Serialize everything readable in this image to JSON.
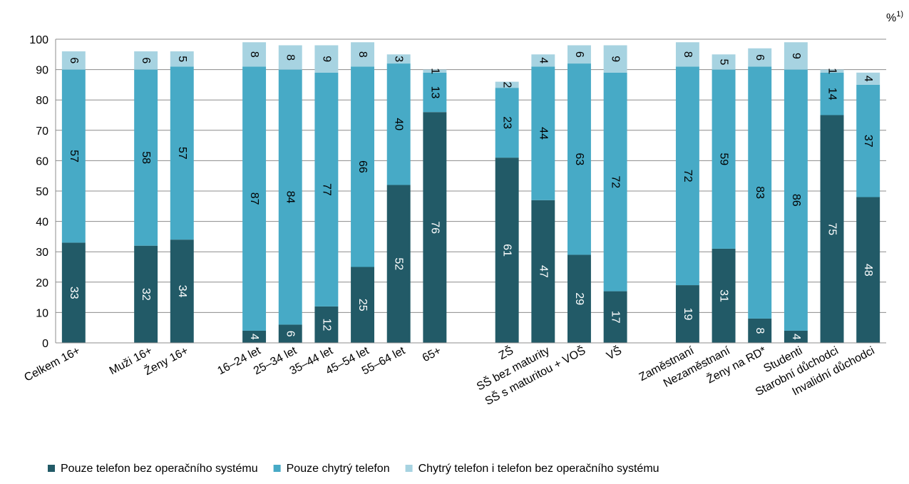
{
  "chart_data": {
    "type": "bar",
    "stacked": true,
    "unit": "%",
    "unit_note": "1)",
    "ylim": [
      0,
      100
    ],
    "yticks": [
      0,
      10,
      20,
      30,
      40,
      50,
      60,
      70,
      80,
      90,
      100
    ],
    "grid": true,
    "legend_position": "bottom",
    "groups": [
      3,
      3,
      3,
      3,
      3,
      3,
      3,
      3,
      3,
      3,
      3,
      3,
      3,
      3
    ],
    "categories": [
      "Celkem 16+",
      "Muži 16+",
      "Ženy 16+",
      "16–24 let",
      "25–34 let",
      "35–44 let",
      "45–54 let",
      "55–64 let",
      "65+",
      "ZŠ",
      "SŠ bez maturity",
      "SŠ s maturitou + VOŠ",
      "VŠ",
      "Zaměstnaní",
      "Nezaměstnaní",
      "Ženy na RD*",
      "Studenti",
      "Starobní důchodci",
      "Invalidní důchodci"
    ],
    "category_groups": [
      1,
      2,
      6,
      4,
      6
    ],
    "series": [
      {
        "name": "Pouze telefon bez operačního systému",
        "color": "#225a67",
        "label_color": "#ffffff",
        "values": [
          33,
          32,
          34,
          4,
          6,
          12,
          25,
          52,
          76,
          61,
          47,
          29,
          17,
          19,
          31,
          8,
          4,
          75,
          48
        ]
      },
      {
        "name": "Pouze chytrý telefon",
        "color": "#47aac6",
        "label_color": "#000000",
        "values": [
          57,
          58,
          57,
          87,
          84,
          77,
          66,
          40,
          13,
          23,
          44,
          63,
          72,
          72,
          59,
          83,
          86,
          14,
          37
        ]
      },
      {
        "name": "Chytrý telefon i telefon bez operačního systému",
        "color": "#a7d3e1",
        "label_color": "#000000",
        "values": [
          6,
          6,
          5,
          8,
          8,
          9,
          8,
          3,
          1,
          2,
          4,
          6,
          9,
          8,
          5,
          6,
          9,
          1,
          4
        ]
      }
    ]
  }
}
